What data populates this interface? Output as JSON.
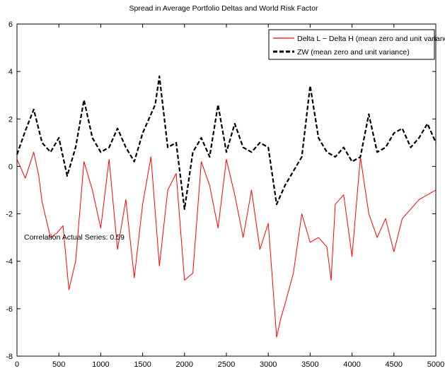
{
  "chart_data": {
    "type": "line",
    "title": "Spread in Average Portfolio Deltas and World Risk Factor",
    "xlabel": "",
    "ylabel": "",
    "xlim": [
      0,
      5000
    ],
    "ylim": [
      -8,
      6
    ],
    "x_ticks": [
      0,
      500,
      1000,
      1500,
      2000,
      2500,
      3000,
      3500,
      4000,
      4500,
      5000
    ],
    "y_ticks": [
      -8,
      -6,
      -4,
      -2,
      0,
      2,
      4,
      6
    ],
    "x_tick_labels": [
      "0",
      "500",
      "1000",
      "1500",
      "2000",
      "2500",
      "3000",
      "3500",
      "4000",
      "4500",
      "5000"
    ],
    "y_tick_labels": [
      "-8",
      "-6",
      "-4",
      "-2",
      "0",
      "2",
      "4",
      "6"
    ],
    "grid": false,
    "legend_placement": "top-right",
    "annotation": "Correlation Actual Series: 0.59",
    "series": [
      {
        "name": "Delta L − Delta H (mean zero and unit variance)",
        "color": "#ff0000",
        "style": "solid",
        "x": [
          0,
          100,
          200,
          260,
          300,
          400,
          480,
          550,
          620,
          700,
          800,
          900,
          1000,
          1100,
          1200,
          1300,
          1400,
          1500,
          1600,
          1700,
          1800,
          1900,
          2000,
          2100,
          2200,
          2300,
          2400,
          2500,
          2600,
          2700,
          2800,
          2900,
          3000,
          3100,
          3150,
          3200,
          3300,
          3400,
          3500,
          3600,
          3700,
          3750,
          3800,
          3900,
          4000,
          4100,
          4200,
          4300,
          4400,
          4500,
          4600,
          4700,
          4800,
          4900,
          5000
        ],
        "y": [
          0.3,
          -0.5,
          0.6,
          -0.4,
          -1.5,
          -3.0,
          -2.8,
          -2.5,
          -5.2,
          -4.0,
          0.2,
          -1.0,
          -2.6,
          0.3,
          -3.5,
          -1.4,
          -4.7,
          -1.6,
          0.4,
          -4.2,
          -1.0,
          -0.3,
          -4.8,
          -4.5,
          0.2,
          -0.8,
          -2.6,
          0.3,
          -1.2,
          -3.0,
          -1.0,
          -3.5,
          -2.4,
          -7.2,
          -6.4,
          -5.8,
          -4.5,
          -2.0,
          -3.2,
          -3.0,
          -3.4,
          -4.8,
          -1.6,
          -1.2,
          -3.8,
          0.4,
          -2.0,
          -3.0,
          -2.2,
          -3.6,
          -2.2,
          -1.8,
          -1.4,
          -1.2,
          -1.0
        ]
      },
      {
        "name": "ZW (mean zero and unit variance)",
        "color": "#000000",
        "style": "dashed",
        "x": [
          0,
          100,
          200,
          300,
          400,
          500,
          600,
          700,
          800,
          900,
          1000,
          1100,
          1200,
          1300,
          1400,
          1500,
          1600,
          1650,
          1700,
          1800,
          1900,
          2000,
          2100,
          2200,
          2300,
          2400,
          2500,
          2600,
          2700,
          2800,
          2900,
          3000,
          3100,
          3200,
          3300,
          3400,
          3500,
          3600,
          3700,
          3800,
          3900,
          4000,
          4100,
          4200,
          4300,
          4400,
          4500,
          4600,
          4700,
          4800,
          4900,
          5000
        ],
        "y": [
          0.5,
          1.5,
          2.4,
          1.0,
          0.6,
          1.2,
          -0.4,
          0.8,
          2.8,
          1.2,
          0.6,
          0.8,
          1.6,
          0.8,
          0.2,
          1.4,
          2.2,
          2.6,
          3.8,
          0.8,
          1.0,
          -1.8,
          0.6,
          1.2,
          0.4,
          2.6,
          0.6,
          1.8,
          0.8,
          0.6,
          1.0,
          0.8,
          -1.6,
          -0.8,
          -0.2,
          0.4,
          3.4,
          1.2,
          0.6,
          0.4,
          0.8,
          0.2,
          0.4,
          2.2,
          0.6,
          0.8,
          1.4,
          1.6,
          0.8,
          1.2,
          1.8,
          1.0
        ]
      }
    ]
  }
}
